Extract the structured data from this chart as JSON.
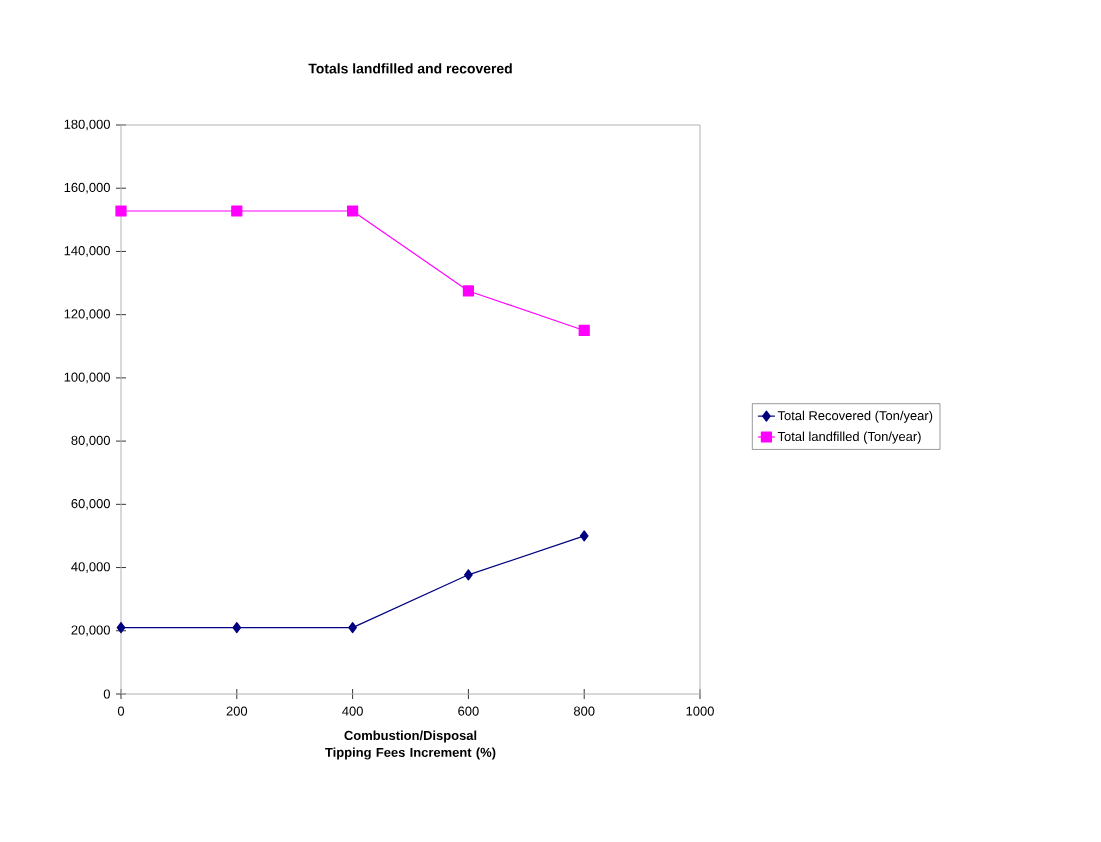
{
  "chart_data": {
    "type": "line",
    "title": "Totals landfilled and recovered",
    "xlabel": "Combustion/Disposal Tipping Fees Increment (%)",
    "x": [
      0,
      200,
      400,
      600,
      800
    ],
    "series": [
      {
        "name": "Total Recovered (Ton/year)",
        "color": "#000080",
        "marker": "diamond",
        "values": [
          21000,
          21000,
          21000,
          37700,
          50000
        ]
      },
      {
        "name": "Total landfilled (Ton/year)",
        "color": "#ff00ff",
        "marker": "square",
        "values": [
          152800,
          152800,
          152800,
          127500,
          115000
        ]
      }
    ],
    "xlim": [
      0,
      1000
    ],
    "xticks": [
      0,
      200,
      400,
      600,
      800,
      1000
    ],
    "ylim": [
      0,
      180000
    ],
    "yticks": [
      {
        "value": 0,
        "label": "0"
      },
      {
        "value": 20000,
        "label": "20,000"
      },
      {
        "value": 40000,
        "label": "40,000"
      },
      {
        "value": 60000,
        "label": "60,000"
      },
      {
        "value": 80000,
        "label": "80,000"
      },
      {
        "value": 100000,
        "label": "100,000"
      },
      {
        "value": 120000,
        "label": "120,000"
      },
      {
        "value": 140000,
        "label": "140,000"
      },
      {
        "value": 160000,
        "label": "160,000"
      },
      {
        "value": 180000,
        "label": "180,000"
      }
    ],
    "grid": false,
    "legend": "right",
    "line_style": "solid"
  }
}
